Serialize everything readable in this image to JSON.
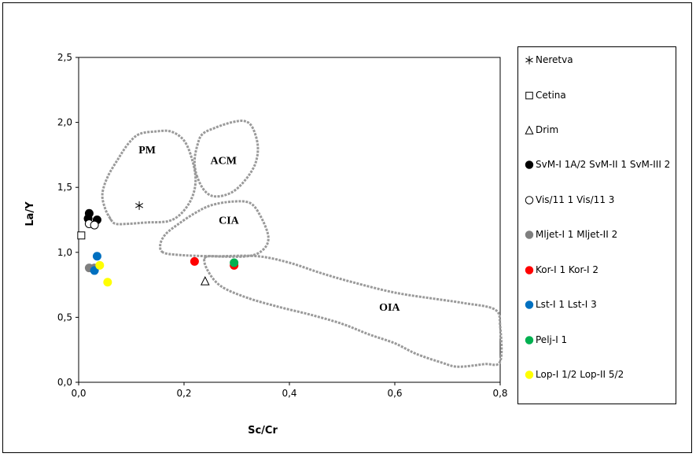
{
  "chart_data": {
    "type": "scatter",
    "xlabel": "Sc/Cr",
    "ylabel": "La/Y",
    "xlim": [
      0,
      0.8
    ],
    "ylim": [
      0,
      2.5
    ],
    "x_ticks": [
      "0,0",
      "0,2",
      "0,4",
      "0,6",
      "0,8"
    ],
    "y_ticks": [
      "0,0",
      "0,5",
      "1,0",
      "1,5",
      "2,0",
      "2,5"
    ],
    "legend_position": "right",
    "grid": false,
    "regions": [
      {
        "label": "PM",
        "label_at": [
          0.13,
          1.76
        ],
        "outline": [
          [
            0.06,
            1.26
          ],
          [
            0.05,
            1.34
          ],
          [
            0.045,
            1.45
          ],
          [
            0.055,
            1.58
          ],
          [
            0.075,
            1.72
          ],
          [
            0.095,
            1.84
          ],
          [
            0.115,
            1.91
          ],
          [
            0.145,
            1.93
          ],
          [
            0.175,
            1.93
          ],
          [
            0.2,
            1.86
          ],
          [
            0.215,
            1.72
          ],
          [
            0.222,
            1.56
          ],
          [
            0.215,
            1.42
          ],
          [
            0.195,
            1.3
          ],
          [
            0.17,
            1.24
          ],
          [
            0.13,
            1.23
          ],
          [
            0.095,
            1.22
          ],
          [
            0.07,
            1.22
          ]
        ]
      },
      {
        "label": "ACM",
        "label_at": [
          0.275,
          1.68
        ],
        "outline": [
          [
            0.225,
            1.58
          ],
          [
            0.22,
            1.7
          ],
          [
            0.225,
            1.82
          ],
          [
            0.235,
            1.91
          ],
          [
            0.26,
            1.96
          ],
          [
            0.29,
            2.0
          ],
          [
            0.315,
            2.01
          ],
          [
            0.33,
            1.96
          ],
          [
            0.34,
            1.82
          ],
          [
            0.335,
            1.68
          ],
          [
            0.315,
            1.55
          ],
          [
            0.29,
            1.46
          ],
          [
            0.26,
            1.43
          ],
          [
            0.24,
            1.47
          ]
        ]
      },
      {
        "label": "CIA",
        "label_at": [
          0.285,
          1.22
        ],
        "outline": [
          [
            0.16,
            1.0
          ],
          [
            0.155,
            1.06
          ],
          [
            0.165,
            1.14
          ],
          [
            0.19,
            1.22
          ],
          [
            0.22,
            1.3
          ],
          [
            0.25,
            1.36
          ],
          [
            0.29,
            1.39
          ],
          [
            0.325,
            1.38
          ],
          [
            0.345,
            1.28
          ],
          [
            0.36,
            1.12
          ],
          [
            0.35,
            1.02
          ],
          [
            0.32,
            0.97
          ],
          [
            0.25,
            0.97
          ],
          [
            0.19,
            0.98
          ]
        ]
      },
      {
        "label": "OIA",
        "label_at": [
          0.59,
          0.55
        ],
        "outline": [
          [
            0.24,
            0.96
          ],
          [
            0.27,
            0.97
          ],
          [
            0.34,
            0.97
          ],
          [
            0.4,
            0.92
          ],
          [
            0.46,
            0.84
          ],
          [
            0.52,
            0.77
          ],
          [
            0.6,
            0.69
          ],
          [
            0.68,
            0.64
          ],
          [
            0.73,
            0.61
          ],
          [
            0.79,
            0.56
          ],
          [
            0.8,
            0.43
          ],
          [
            0.8,
            0.16
          ],
          [
            0.77,
            0.14
          ],
          [
            0.72,
            0.12
          ],
          [
            0.69,
            0.15
          ],
          [
            0.64,
            0.22
          ],
          [
            0.6,
            0.3
          ],
          [
            0.55,
            0.37
          ],
          [
            0.5,
            0.45
          ],
          [
            0.44,
            0.52
          ],
          [
            0.38,
            0.58
          ],
          [
            0.32,
            0.65
          ],
          [
            0.27,
            0.74
          ],
          [
            0.245,
            0.86
          ]
        ]
      }
    ],
    "series": [
      {
        "name": "Neretva",
        "marker": "asterisk",
        "color": "#000000",
        "points": [
          [
            0.115,
            1.36
          ]
        ]
      },
      {
        "name": "Cetina",
        "marker": "square-open",
        "color": "#000000",
        "points": [
          [
            0.005,
            1.13
          ]
        ]
      },
      {
        "name": "Drim",
        "marker": "triangle-open",
        "color": "#000000",
        "points": [
          [
            0.24,
            0.78
          ]
        ]
      },
      {
        "name": "SvM-I 1A/2 SvM-II 1 SvM-III 2",
        "marker": "circle",
        "color": "#000000",
        "points": [
          [
            0.02,
            1.3
          ],
          [
            0.018,
            1.26
          ],
          [
            0.035,
            1.25
          ]
        ]
      },
      {
        "name": "Vis/11 1 Vis/11 3",
        "marker": "circle-open",
        "color": "#000000",
        "points": [
          [
            0.02,
            1.22
          ],
          [
            0.03,
            1.21
          ]
        ]
      },
      {
        "name": "Mljet-I 1 Mljet-II 2",
        "marker": "circle",
        "color": "#7f7f7f",
        "points": [
          [
            0.02,
            0.88
          ],
          [
            0.03,
            0.88
          ]
        ]
      },
      {
        "name": "Kor-I 1 Kor-I 2",
        "marker": "circle",
        "color": "#ff0000",
        "points": [
          [
            0.22,
            0.93
          ],
          [
            0.295,
            0.9
          ]
        ]
      },
      {
        "name": "Lst-I 1 Lst-I 3",
        "marker": "circle",
        "color": "#0070c0",
        "points": [
          [
            0.035,
            0.97
          ],
          [
            0.03,
            0.86
          ]
        ]
      },
      {
        "name": "Pelj-I 1",
        "marker": "circle",
        "color": "#00b050",
        "points": [
          [
            0.295,
            0.92
          ]
        ]
      },
      {
        "name": "Lop-I 1/2 Lop-II 5/2",
        "marker": "circle",
        "color": "#ffff00",
        "points": [
          [
            0.04,
            0.9
          ],
          [
            0.055,
            0.77
          ]
        ]
      }
    ]
  }
}
